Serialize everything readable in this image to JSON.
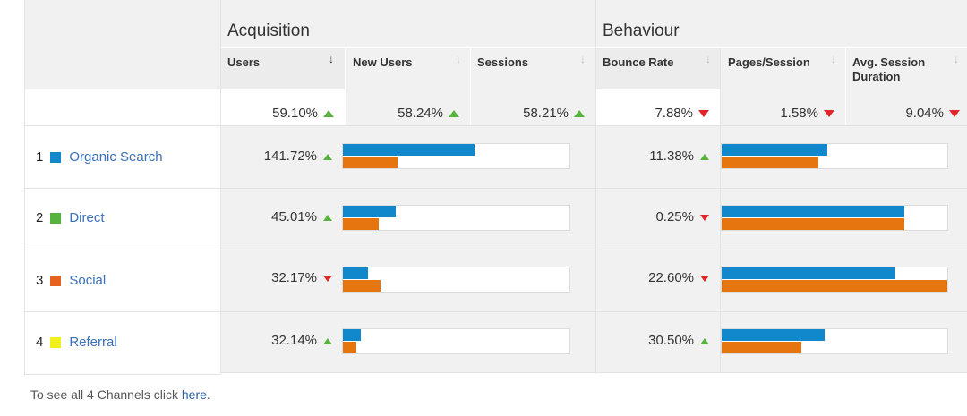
{
  "groups": {
    "acquisition": "Acquisition",
    "behaviour": "Behaviour"
  },
  "columns": {
    "users": "Users",
    "new_users": "New Users",
    "sessions": "Sessions",
    "bounce_rate": "Bounce Rate",
    "pages_session": "Pages/Session",
    "avg_session_line1": "Avg. Session",
    "avg_session_line2": "Duration"
  },
  "sort_glyph": "↓",
  "totals": {
    "users": "59.10%",
    "new_users": "58.24%",
    "sessions": "58.21%",
    "bounce_rate": "7.88%",
    "pages_session": "1.58%",
    "avg_session": "9.04%"
  },
  "rows": [
    {
      "index": "1",
      "name": "Organic Search",
      "color": "#1188cc",
      "acq": "141.72%",
      "beh": "11.38%",
      "acq_bars": [
        0.58,
        0.24
      ],
      "beh_bars": [
        0.47,
        0.43
      ]
    },
    {
      "index": "2",
      "name": "Direct",
      "color": "#57b33e",
      "acq": "45.01%",
      "beh": "0.25%",
      "acq_bars": [
        0.235,
        0.16
      ],
      "beh_bars": [
        0.81,
        0.81
      ]
    },
    {
      "index": "3",
      "name": "Social",
      "color": "#e6621f",
      "acq": "32.17%",
      "beh": "22.60%",
      "acq_bars": [
        0.11,
        0.165
      ],
      "beh_bars": [
        0.77,
        1.0
      ]
    },
    {
      "index": "4",
      "name": "Referral",
      "color": "#f1f01d",
      "acq": "32.14%",
      "beh": "30.50%",
      "acq_bars": [
        0.08,
        0.06
      ],
      "beh_bars": [
        0.455,
        0.355
      ]
    }
  ],
  "footer": {
    "text": "To see all 4 Channels click ",
    "link": "here",
    "period": "."
  }
}
